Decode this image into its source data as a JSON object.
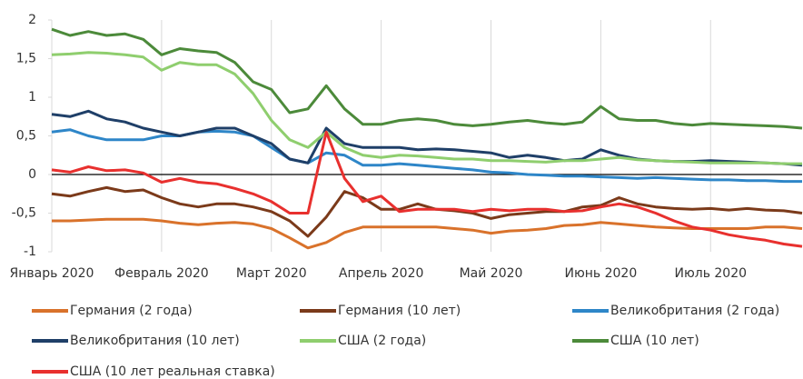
{
  "chart_data": {
    "type": "line",
    "categories": [
      "Январь 2020",
      null,
      null,
      null,
      null,
      null,
      "Февраль 2020",
      null,
      null,
      null,
      null,
      null,
      "Март 2020",
      null,
      null,
      null,
      null,
      null,
      "Апрель 2020",
      null,
      null,
      null,
      null,
      null,
      "Май 2020",
      null,
      null,
      null,
      null,
      null,
      "Июнь 2020",
      null,
      null,
      null,
      null,
      null,
      "Июль 2020",
      null,
      null,
      null,
      null,
      null
    ],
    "ylim": [
      -1,
      2
    ],
    "yticks": [
      -1,
      {
        "value": -0.5,
        "label": "-0,5"
      },
      0,
      {
        "value": 0.5,
        "label": "0,5"
      },
      1,
      {
        "value": 1.5,
        "label": "1,5"
      },
      2
    ],
    "xgrid": true,
    "legend": "bottom",
    "series": [
      {
        "name": "Германия (2 года)",
        "color": "#d9722b",
        "values": [
          -0.6,
          -0.6,
          -0.59,
          -0.58,
          -0.58,
          -0.58,
          -0.6,
          -0.63,
          -0.65,
          -0.63,
          -0.62,
          -0.64,
          -0.7,
          -0.82,
          -0.95,
          -0.88,
          -0.75,
          -0.68,
          -0.68,
          -0.68,
          -0.68,
          -0.68,
          -0.7,
          -0.72,
          -0.76,
          -0.73,
          -0.72,
          -0.7,
          -0.66,
          -0.65,
          -0.62,
          -0.64,
          -0.66,
          -0.68,
          -0.69,
          -0.7,
          -0.7,
          -0.7,
          -0.7,
          -0.68,
          -0.68,
          -0.7
        ]
      },
      {
        "name": "Германия (10 лет)",
        "color": "#7b3a1a",
        "values": [
          -0.25,
          -0.28,
          -0.22,
          -0.17,
          -0.22,
          -0.2,
          -0.3,
          -0.38,
          -0.42,
          -0.38,
          -0.38,
          -0.42,
          -0.48,
          -0.6,
          -0.8,
          -0.55,
          -0.22,
          -0.3,
          -0.45,
          -0.45,
          -0.38,
          -0.45,
          -0.47,
          -0.5,
          -0.57,
          -0.52,
          -0.5,
          -0.48,
          -0.48,
          -0.42,
          -0.4,
          -0.3,
          -0.38,
          -0.42,
          -0.44,
          -0.45,
          -0.44,
          -0.46,
          -0.44,
          -0.46,
          -0.47,
          -0.5
        ]
      },
      {
        "name": "Великобритания (2 года)",
        "color": "#2e86c8",
        "values": [
          0.55,
          0.58,
          0.5,
          0.45,
          0.45,
          0.45,
          0.5,
          0.5,
          0.55,
          0.56,
          0.55,
          0.5,
          0.35,
          0.2,
          0.15,
          0.28,
          0.25,
          0.12,
          0.12,
          0.14,
          0.12,
          0.1,
          0.08,
          0.06,
          0.03,
          0.02,
          0.0,
          -0.01,
          -0.02,
          -0.02,
          -0.03,
          -0.04,
          -0.05,
          -0.04,
          -0.05,
          -0.06,
          -0.07,
          -0.07,
          -0.08,
          -0.08,
          -0.09,
          -0.09
        ]
      },
      {
        "name": "Великобритания (10 лет)",
        "color": "#1f3f68",
        "values": [
          0.78,
          0.75,
          0.82,
          0.72,
          0.68,
          0.6,
          0.55,
          0.5,
          0.55,
          0.6,
          0.6,
          0.5,
          0.4,
          0.2,
          0.15,
          0.6,
          0.4,
          0.35,
          0.35,
          0.35,
          0.32,
          0.33,
          0.32,
          0.3,
          0.28,
          0.22,
          0.25,
          0.22,
          0.18,
          0.2,
          0.32,
          0.25,
          0.2,
          0.18,
          0.17,
          0.17,
          0.18,
          0.17,
          0.16,
          0.15,
          0.14,
          0.12
        ]
      },
      {
        "name": "США (2 года)",
        "color": "#8fce6e",
        "values": [
          1.55,
          1.56,
          1.58,
          1.57,
          1.55,
          1.52,
          1.35,
          1.45,
          1.42,
          1.42,
          1.3,
          1.05,
          0.7,
          0.45,
          0.35,
          0.55,
          0.35,
          0.25,
          0.22,
          0.25,
          0.24,
          0.22,
          0.2,
          0.2,
          0.18,
          0.18,
          0.17,
          0.16,
          0.18,
          0.18,
          0.2,
          0.22,
          0.19,
          0.18,
          0.17,
          0.16,
          0.15,
          0.15,
          0.15,
          0.15,
          0.14,
          0.14
        ]
      },
      {
        "name": "США (10 лет)",
        "color": "#4c8a3a",
        "values": [
          1.88,
          1.8,
          1.85,
          1.8,
          1.82,
          1.75,
          1.55,
          1.63,
          1.6,
          1.58,
          1.45,
          1.2,
          1.1,
          0.8,
          0.85,
          1.15,
          0.85,
          0.65,
          0.65,
          0.7,
          0.72,
          0.7,
          0.65,
          0.63,
          0.65,
          0.68,
          0.7,
          0.67,
          0.65,
          0.68,
          0.88,
          0.72,
          0.7,
          0.7,
          0.66,
          0.64,
          0.66,
          0.65,
          0.64,
          0.63,
          0.62,
          0.6
        ]
      },
      {
        "name": "США (10 лет реальная ставка)",
        "color": "#e8302e",
        "values": [
          0.06,
          0.03,
          0.1,
          0.05,
          0.06,
          0.02,
          -0.1,
          -0.05,
          -0.1,
          -0.12,
          -0.18,
          -0.25,
          -0.35,
          -0.5,
          -0.5,
          0.55,
          -0.05,
          -0.35,
          -0.28,
          -0.48,
          -0.45,
          -0.45,
          -0.45,
          -0.48,
          -0.45,
          -0.47,
          -0.45,
          -0.45,
          -0.48,
          -0.47,
          -0.42,
          -0.38,
          -0.42,
          -0.5,
          -0.6,
          -0.68,
          -0.72,
          -0.78,
          -0.82,
          -0.85,
          -0.9,
          -0.93
        ]
      }
    ]
  }
}
